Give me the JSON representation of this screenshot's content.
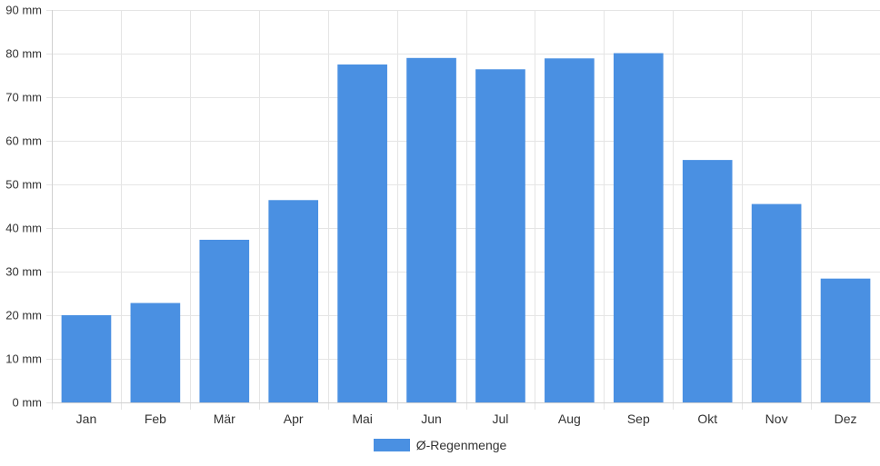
{
  "chart_data": {
    "type": "bar",
    "title": "",
    "xlabel": "",
    "ylabel": "",
    "categories": [
      "Jan",
      "Feb",
      "Mär",
      "Apr",
      "Mai",
      "Jun",
      "Jul",
      "Aug",
      "Sep",
      "Okt",
      "Nov",
      "Dez"
    ],
    "series": [
      {
        "name": "Ø-Regenmenge",
        "values": [
          20,
          22.8,
          37.3,
          46.4,
          77.5,
          79,
          76.4,
          78.9,
          80.1,
          55.6,
          45.5,
          28.4
        ],
        "color": "#4a90e2"
      }
    ],
    "ylim": [
      0,
      90
    ],
    "yticks": [
      0,
      10,
      20,
      30,
      40,
      50,
      60,
      70,
      80,
      90
    ],
    "ytick_labels": [
      "0 mm",
      "10 mm",
      "20 mm",
      "30 mm",
      "40 mm",
      "50 mm",
      "60 mm",
      "70 mm",
      "80 mm",
      "90 mm"
    ],
    "grid": true,
    "legend_position": "bottom-center"
  }
}
